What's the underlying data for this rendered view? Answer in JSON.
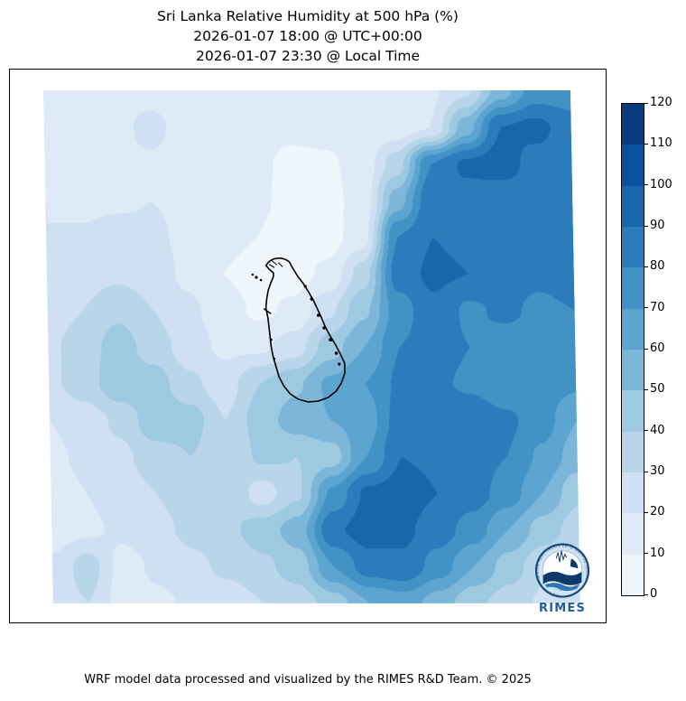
{
  "figure": {
    "title": "Sri Lanka Relative Humidity at 500 hPa (%)",
    "subtitle_utc": "2026-01-07 18:00 @ UTC+00:00",
    "subtitle_local": "2026-01-07 23:30 @ Local Time",
    "footer": "WRF model data processed and visualized by the RIMES R&D Team. © 2025"
  },
  "logo": {
    "label": "RIMES",
    "ring_text": "Regional Integrated Multi-Hazard Early Warning System"
  },
  "chart_data": {
    "type": "heatmap",
    "title": "Sri Lanka Relative Humidity at 500 hPa (%)",
    "subtitle_utc": "2026-01-07 18:00 @ UTC+00:00",
    "subtitle_local": "2026-01-07 23:30 @ Local Time",
    "variable": "Relative Humidity",
    "pressure_level": "500 hPa",
    "units": "%",
    "region": "Sri Lanka and surrounding ocean",
    "overlay": "Sri Lanka coastline outline (black)",
    "legend_position": "right vertical colorbar",
    "grid_lines": false,
    "colorbar": {
      "min": 0,
      "max": 120,
      "step": 10,
      "ticks": [
        0,
        10,
        20,
        30,
        40,
        50,
        60,
        70,
        80,
        90,
        100,
        110,
        120
      ],
      "colors": [
        "#eff6fc",
        "#deebf7",
        "#cee0f2",
        "#b9d5ea",
        "#9ecae1",
        "#7cb7da",
        "#5da5d1",
        "#4292c6",
        "#2c7cbb",
        "#1966ad",
        "#08519c",
        "#083b7b"
      ]
    },
    "grid": {
      "comment": "Approx relative-humidity field (%), 16 cols x 15 rows, row 0 = north/top of map, col 0 = west/left",
      "cols": 16,
      "rows": 15,
      "values": [
        [
          15,
          15,
          15,
          15,
          15,
          15,
          14,
          14,
          13,
          13,
          14,
          18,
          28,
          55,
          75,
          74
        ],
        [
          15,
          15,
          15,
          24,
          15,
          14,
          13,
          12,
          12,
          12,
          14,
          20,
          55,
          90,
          93,
          85
        ],
        [
          15,
          15,
          16,
          18,
          15,
          13,
          12,
          8,
          9,
          12,
          35,
          80,
          92,
          95,
          86,
          85
        ],
        [
          20,
          16,
          18,
          20,
          18,
          15,
          12,
          7,
          8,
          12,
          55,
          88,
          86,
          83,
          85,
          85
        ],
        [
          20,
          22,
          25,
          22,
          18,
          13,
          10,
          5,
          6,
          15,
          80,
          90,
          88,
          85,
          85,
          85
        ],
        [
          22,
          25,
          28,
          25,
          18,
          10,
          6,
          6,
          12,
          35,
          85,
          92,
          90,
          85,
          82,
          85
        ],
        [
          25,
          30,
          38,
          30,
          22,
          15,
          8,
          12,
          28,
          48,
          75,
          88,
          78,
          82,
          78,
          80
        ],
        [
          28,
          35,
          45,
          35,
          25,
          18,
          18,
          25,
          45,
          60,
          80,
          85,
          80,
          75,
          78,
          78
        ],
        [
          28,
          35,
          48,
          45,
          32,
          25,
          40,
          48,
          62,
          70,
          82,
          82,
          78,
          72,
          75,
          72
        ],
        [
          20,
          25,
          32,
          48,
          45,
          30,
          45,
          55,
          60,
          65,
          85,
          90,
          88,
          82,
          75,
          60
        ],
        [
          18,
          22,
          28,
          35,
          40,
          30,
          42,
          40,
          45,
          70,
          90,
          88,
          85,
          80,
          68,
          55
        ],
        [
          15,
          20,
          25,
          30,
          35,
          40,
          25,
          38,
          72,
          92,
          95,
          90,
          85,
          75,
          60,
          42
        ],
        [
          15,
          18,
          22,
          28,
          32,
          38,
          45,
          55,
          88,
          95,
          92,
          85,
          75,
          60,
          45,
          35
        ],
        [
          22,
          35,
          16,
          22,
          28,
          32,
          38,
          45,
          70,
          85,
          88,
          75,
          60,
          45,
          32,
          28
        ],
        [
          25,
          30,
          15,
          18,
          22,
          25,
          30,
          35,
          45,
          60,
          65,
          55,
          42,
          35,
          28,
          25
        ]
      ]
    }
  }
}
